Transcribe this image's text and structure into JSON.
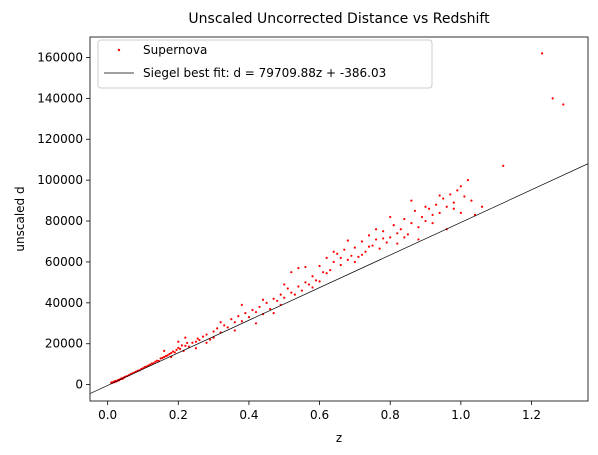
{
  "chart_data": {
    "type": "scatter",
    "title": "Unscaled Uncorrected Distance vs Redshift",
    "xlabel": "z",
    "ylabel": "unscaled d",
    "xlim": [
      -0.05,
      1.36
    ],
    "ylim": [
      -8000,
      170000
    ],
    "x_ticks": [
      {
        "value": 0.0,
        "label": "0.0"
      },
      {
        "value": 0.2,
        "label": "0.2"
      },
      {
        "value": 0.4,
        "label": "0.4"
      },
      {
        "value": 0.6,
        "label": "0.6"
      },
      {
        "value": 0.8,
        "label": "0.8"
      },
      {
        "value": 1.0,
        "label": "1.0"
      },
      {
        "value": 1.2,
        "label": "1.2"
      }
    ],
    "y_ticks": [
      {
        "value": 0,
        "label": "0"
      },
      {
        "value": 20000,
        "label": "20000"
      },
      {
        "value": 40000,
        "label": "40000"
      },
      {
        "value": 60000,
        "label": "60000"
      },
      {
        "value": 80000,
        "label": "80000"
      },
      {
        "value": 100000,
        "label": "100000"
      },
      {
        "value": 120000,
        "label": "120000"
      },
      {
        "value": 140000,
        "label": "140000"
      },
      {
        "value": 160000,
        "label": "160000"
      }
    ],
    "grid": false,
    "legend_position": "top-left",
    "series": [
      {
        "name": "Supernova",
        "kind": "scatter",
        "color": "#ff0000",
        "points": [
          [
            0.01,
            800
          ],
          [
            0.012,
            1200
          ],
          [
            0.015,
            1000
          ],
          [
            0.018,
            1500
          ],
          [
            0.02,
            1300
          ],
          [
            0.022,
            1800
          ],
          [
            0.025,
            1600
          ],
          [
            0.028,
            2000
          ],
          [
            0.03,
            2300
          ],
          [
            0.032,
            2100
          ],
          [
            0.035,
            2600
          ],
          [
            0.038,
            2900
          ],
          [
            0.04,
            3100
          ],
          [
            0.042,
            2800
          ],
          [
            0.045,
            3400
          ],
          [
            0.048,
            3600
          ],
          [
            0.05,
            3900
          ],
          [
            0.055,
            4200
          ],
          [
            0.06,
            4600
          ],
          [
            0.065,
            5100
          ],
          [
            0.07,
            5500
          ],
          [
            0.075,
            5900
          ],
          [
            0.08,
            6300
          ],
          [
            0.085,
            6800
          ],
          [
            0.09,
            7000
          ],
          [
            0.095,
            7600
          ],
          [
            0.1,
            8000
          ],
          [
            0.105,
            8600
          ],
          [
            0.11,
            8900
          ],
          [
            0.115,
            9300
          ],
          [
            0.12,
            9800
          ],
          [
            0.125,
            10300
          ],
          [
            0.13,
            10500
          ],
          [
            0.135,
            11200
          ],
          [
            0.14,
            11700
          ],
          [
            0.145,
            11500
          ],
          [
            0.15,
            12800
          ],
          [
            0.155,
            13100
          ],
          [
            0.16,
            13500
          ],
          [
            0.165,
            14000
          ],
          [
            0.17,
            14300
          ],
          [
            0.175,
            15000
          ],
          [
            0.18,
            15500
          ],
          [
            0.185,
            16200
          ],
          [
            0.19,
            15800
          ],
          [
            0.195,
            17000
          ],
          [
            0.2,
            18000
          ],
          [
            0.205,
            17500
          ],
          [
            0.21,
            19200
          ],
          [
            0.215,
            16500
          ],
          [
            0.22,
            19000
          ],
          [
            0.225,
            20400
          ],
          [
            0.23,
            18600
          ],
          [
            0.24,
            20500
          ],
          [
            0.25,
            21000
          ],
          [
            0.255,
            22500
          ],
          [
            0.26,
            21800
          ],
          [
            0.27,
            23500
          ],
          [
            0.28,
            24500
          ],
          [
            0.29,
            22000
          ],
          [
            0.3,
            26000
          ],
          [
            0.31,
            27500
          ],
          [
            0.32,
            25500
          ],
          [
            0.33,
            29000
          ],
          [
            0.34,
            28000
          ],
          [
            0.35,
            32000
          ],
          [
            0.36,
            30500
          ],
          [
            0.37,
            33500
          ],
          [
            0.38,
            31000
          ],
          [
            0.39,
            35000
          ],
          [
            0.4,
            33000
          ],
          [
            0.41,
            36500
          ],
          [
            0.42,
            35500
          ],
          [
            0.43,
            38000
          ],
          [
            0.44,
            34500
          ],
          [
            0.45,
            40000
          ],
          [
            0.46,
            37000
          ],
          [
            0.47,
            42000
          ],
          [
            0.48,
            41000
          ],
          [
            0.49,
            44000
          ],
          [
            0.5,
            42500
          ],
          [
            0.51,
            47000
          ],
          [
            0.52,
            55000
          ],
          [
            0.53,
            44000
          ],
          [
            0.54,
            57000
          ],
          [
            0.55,
            46000
          ],
          [
            0.56,
            50000
          ],
          [
            0.57,
            49000
          ],
          [
            0.58,
            53000
          ],
          [
            0.59,
            51000
          ],
          [
            0.6,
            58000
          ],
          [
            0.61,
            55000
          ],
          [
            0.62,
            62000
          ],
          [
            0.63,
            56000
          ],
          [
            0.64,
            60000
          ],
          [
            0.65,
            64000
          ],
          [
            0.66,
            58500
          ],
          [
            0.67,
            66000
          ],
          [
            0.68,
            61000
          ],
          [
            0.69,
            63000
          ],
          [
            0.7,
            67000
          ],
          [
            0.71,
            62500
          ],
          [
            0.72,
            70000
          ],
          [
            0.73,
            65000
          ],
          [
            0.74,
            73000
          ],
          [
            0.75,
            68000
          ],
          [
            0.76,
            71000
          ],
          [
            0.77,
            66500
          ],
          [
            0.78,
            75000
          ],
          [
            0.79,
            69500
          ],
          [
            0.8,
            72000
          ],
          [
            0.81,
            78000
          ],
          [
            0.82,
            74000
          ],
          [
            0.83,
            76000
          ],
          [
            0.84,
            81000
          ],
          [
            0.85,
            73500
          ],
          [
            0.86,
            79000
          ],
          [
            0.87,
            85000
          ],
          [
            0.88,
            77000
          ],
          [
            0.89,
            82000
          ],
          [
            0.9,
            80000
          ],
          [
            0.91,
            86000
          ],
          [
            0.92,
            83000
          ],
          [
            0.93,
            88000
          ],
          [
            0.94,
            84000
          ],
          [
            0.95,
            91000
          ],
          [
            0.96,
            87000
          ],
          [
            0.97,
            93000
          ],
          [
            0.98,
            89000
          ],
          [
            0.99,
            95000
          ],
          [
            1.0,
            97000
          ],
          [
            1.01,
            92000
          ],
          [
            1.02,
            100000
          ],
          [
            1.03,
            90000
          ],
          [
            1.04,
            83000
          ],
          [
            1.06,
            87000
          ],
          [
            1.12,
            107000
          ],
          [
            1.23,
            162000
          ],
          [
            1.26,
            140000
          ],
          [
            1.29,
            137000
          ],
          [
            0.2,
            21000
          ],
          [
            0.22,
            23000
          ],
          [
            0.18,
            13500
          ],
          [
            0.16,
            16500
          ],
          [
            0.25,
            17800
          ],
          [
            0.28,
            20500
          ],
          [
            0.3,
            23000
          ],
          [
            0.32,
            30500
          ],
          [
            0.36,
            26500
          ],
          [
            0.38,
            39000
          ],
          [
            0.44,
            41500
          ],
          [
            0.5,
            49000
          ],
          [
            0.52,
            45000
          ],
          [
            0.54,
            48000
          ],
          [
            0.56,
            57500
          ],
          [
            0.58,
            47500
          ],
          [
            0.6,
            50500
          ],
          [
            0.62,
            54500
          ],
          [
            0.64,
            65000
          ],
          [
            0.66,
            62000
          ],
          [
            0.68,
            70500
          ],
          [
            0.7,
            60000
          ],
          [
            0.72,
            63500
          ],
          [
            0.74,
            67500
          ],
          [
            0.76,
            76000
          ],
          [
            0.78,
            71500
          ],
          [
            0.8,
            82000
          ],
          [
            0.82,
            69000
          ],
          [
            0.84,
            72000
          ],
          [
            0.86,
            90000
          ],
          [
            0.88,
            71000
          ],
          [
            0.9,
            87000
          ],
          [
            0.92,
            79000
          ],
          [
            0.94,
            92500
          ],
          [
            0.96,
            76000
          ],
          [
            0.98,
            86000
          ],
          [
            1.0,
            84000
          ],
          [
            0.47,
            35000
          ],
          [
            0.49,
            39000
          ],
          [
            0.42,
            30000
          ]
        ]
      },
      {
        "name": "Siegel best fit: d = 79709.88z + -386.03",
        "kind": "line",
        "color": "#000000",
        "slope": 79709.88,
        "intercept": -386.03
      }
    ]
  }
}
